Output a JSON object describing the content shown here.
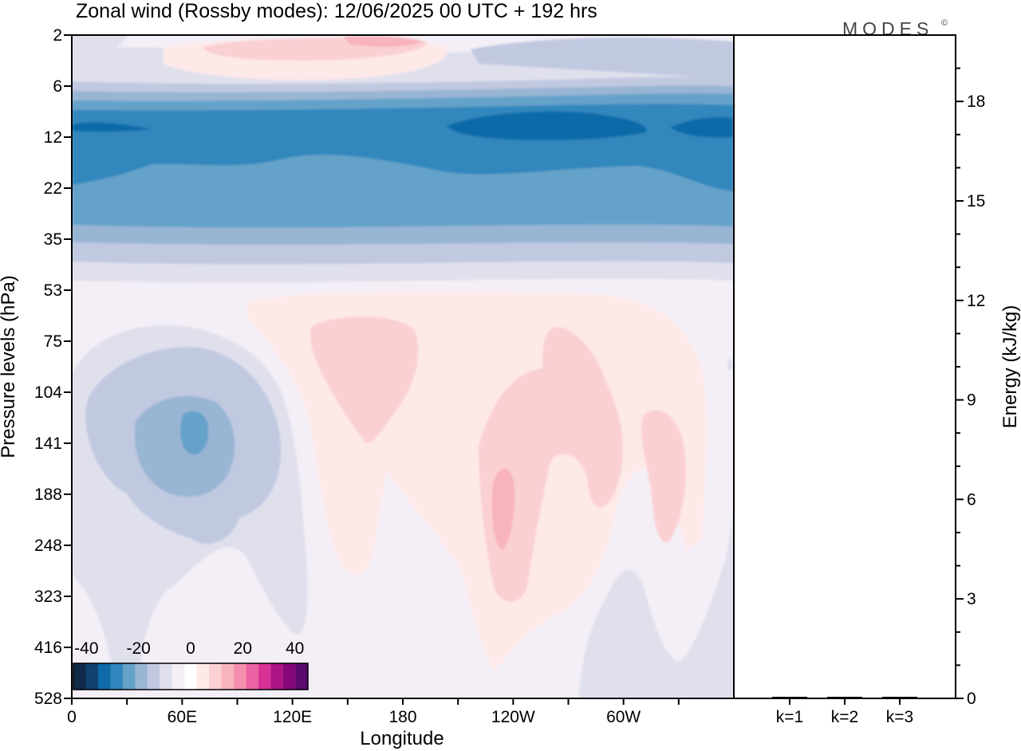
{
  "title": "Zonal wind (Rossby modes):  12/06/2025  00 UTC  + 192 hrs",
  "logo": "MODES",
  "logo_mark": "©",
  "chart_data": [
    {
      "type": "heatmap",
      "variable": "Zonal wind (Rossby modes)",
      "xlabel": "Longitude",
      "ylabel": "Pressure levels (hPa)",
      "xticks": [
        "0",
        "60E",
        "120E",
        "180",
        "120W",
        "60W"
      ],
      "xtick_degrees": [
        0,
        60,
        120,
        180,
        240,
        300
      ],
      "xlim_degrees": [
        0,
        360
      ],
      "ylevels": [
        2,
        6,
        12,
        22,
        35,
        53,
        75,
        104,
        141,
        188,
        248,
        323,
        416,
        528
      ],
      "yticks": [
        "2",
        "6",
        "12",
        "22",
        "35",
        "53",
        "75",
        "104",
        "141",
        "188",
        "248",
        "323",
        "416",
        "528"
      ],
      "contour_step": 5,
      "colorbar": {
        "ticks": [
          "-40",
          "-20",
          "0",
          "20",
          "40"
        ],
        "range": [
          -45,
          45
        ],
        "colors": [
          "#102a4a",
          "#10426e",
          "#0e6aa8",
          "#3087bd",
          "#65a2c9",
          "#99b5d4",
          "#c1c9e1",
          "#e0e0ed",
          "#f4eff6",
          "#ffffff",
          "#fee9e9",
          "#fbd0d3",
          "#f8b3bd",
          "#f48eae",
          "#ec63a3",
          "#d63194",
          "#ac1383",
          "#84087b",
          "#5b0b6c"
        ]
      },
      "features": [
        {
          "feature": "easterly band",
          "lon_range": [
            0,
            360
          ],
          "levels_hPa": [
            9,
            25
          ],
          "min_value": -32
        },
        {
          "feature": "weak westerlies",
          "lon_range": [
            45,
            205
          ],
          "levels_hPa": [
            2,
            4
          ],
          "max_value": 8
        },
        {
          "feature": "easterly cell",
          "lon": 66,
          "level_hPa": 141,
          "min_value": -23
        },
        {
          "feature": "westerly cell",
          "lon": 163,
          "level_hPa": 88,
          "max_value": 10
        },
        {
          "feature": "westerly cell",
          "lon": 234,
          "level_hPa": 200,
          "max_value": 15
        },
        {
          "feature": "westerly cell",
          "lon": 318,
          "level_hPa": 150,
          "max_value": 10
        },
        {
          "feature": "weak easterlies",
          "lon": 302,
          "level_hPa": 450,
          "min_value": -6
        }
      ]
    },
    {
      "type": "bar",
      "ylabel": "Energy (kJ/kg)",
      "categories": [
        "k=1",
        "k=2",
        "k=3"
      ],
      "values": [
        0.04,
        0.03,
        0.02
      ],
      "yticks": [
        "0",
        "3",
        "6",
        "9",
        "12",
        "15",
        "18"
      ],
      "ylim": [
        0,
        20
      ]
    }
  ]
}
